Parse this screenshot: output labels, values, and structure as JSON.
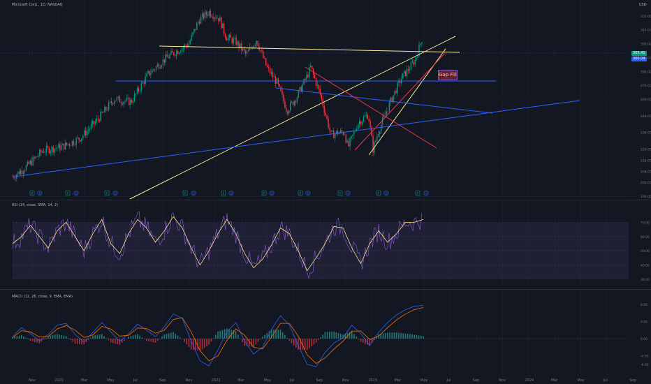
{
  "main_header": "Microsoft Corp., 1D, NASDAQ",
  "currency": "USD",
  "last_price_tag": "305.41",
  "secondary_tag": "300.04",
  "annotation_gap": "Gap Fill",
  "rsi_header": "RSI (14, close, SMA, 14, 2)",
  "macd_header": "MACD (12, 26, close, 9, EMA, EMA)",
  "event_markers": [
    "E",
    "D",
    "E",
    "D",
    "E",
    "D",
    "E",
    "D",
    "E",
    "D",
    "E",
    "D",
    "E",
    "D",
    "E",
    "D",
    "E",
    "D",
    "E",
    "D"
  ],
  "colors": {
    "bg": "#131722",
    "up": "#089981",
    "down": "#f23645",
    "blue": "#2962ff",
    "yellow": "#ffeb99",
    "red": "#f23645",
    "rsi": "#7e57c2",
    "rsi_ma": "#ffe38a",
    "macd": "#2962ff",
    "signal": "#ff6d00"
  },
  "chart_data": [
    {
      "type": "candlestick",
      "title": "Microsoft Corp., 1D, NASDAQ",
      "x_tick_labels": [
        "Nov",
        "2021",
        "Mar",
        "May",
        "Jul",
        "Sep",
        "Nov",
        "2022",
        "Mar",
        "May",
        "Jul",
        "Sep",
        "Nov",
        "2023",
        "Mar",
        "May",
        "Jul",
        "Sep",
        "Nov",
        "2024",
        "Mar",
        "May",
        "Jul",
        "Sep"
      ],
      "y_ticks": [
        190,
        200,
        208,
        216,
        224,
        236,
        248,
        260,
        270,
        280,
        290,
        300,
        310,
        320
      ],
      "y_tick_labels": [
        "190.00",
        "200.00",
        "208.00",
        "216.00",
        "224.00",
        "236.00",
        "248.00",
        "260.00",
        "270.00",
        "280.00",
        "290.00",
        "300.00",
        "310.00",
        "320.00"
      ],
      "ylim": [
        188,
        330
      ],
      "price_path": [
        [
          0,
          204
        ],
        [
          20,
          211
        ],
        [
          45,
          223
        ],
        [
          75,
          226
        ],
        [
          100,
          232
        ],
        [
          125,
          245
        ],
        [
          150,
          260
        ],
        [
          175,
          258
        ],
        [
          200,
          278
        ],
        [
          225,
          289
        ],
        [
          240,
          294
        ],
        [
          260,
          300
        ],
        [
          275,
          317
        ],
        [
          290,
          323
        ],
        [
          305,
          318
        ],
        [
          315,
          305
        ],
        [
          330,
          301
        ],
        [
          345,
          292
        ],
        [
          360,
          303
        ],
        [
          375,
          283
        ],
        [
          390,
          272
        ],
        [
          405,
          252
        ],
        [
          420,
          262
        ],
        [
          435,
          277
        ],
        [
          440,
          283
        ],
        [
          455,
          262
        ],
        [
          470,
          234
        ],
        [
          480,
          236
        ],
        [
          490,
          236
        ],
        [
          495,
          225
        ],
        [
          510,
          243
        ],
        [
          525,
          249
        ],
        [
          532,
          224
        ],
        [
          540,
          237
        ],
        [
          555,
          255
        ],
        [
          565,
          266
        ],
        [
          575,
          276
        ],
        [
          585,
          282
        ],
        [
          595,
          289
        ],
        [
          605,
          305
        ]
      ]
    },
    {
      "type": "line",
      "title": "RSI (14, close, SMA, 14, 2)",
      "y_ticks": [
        30,
        40,
        50,
        60,
        70
      ],
      "y_tick_labels": [
        "30.00",
        "40.00",
        "50.00",
        "60.00",
        "70.00"
      ],
      "ylim": [
        28,
        80
      ],
      "band": [
        30,
        70
      ],
      "series": [
        {
          "values": [
            55,
            60,
            68,
            60,
            52,
            64,
            70,
            60,
            50,
            62,
            72,
            55,
            48,
            62,
            72,
            66,
            56,
            64,
            74,
            66,
            52,
            40,
            50,
            62,
            72,
            62,
            48,
            38,
            44,
            54,
            66,
            62,
            50,
            36,
            45,
            55,
            67,
            66,
            52,
            41,
            55,
            64,
            56,
            62,
            70,
            70,
            72
          ]
        }
      ]
    },
    {
      "type": "line",
      "title": "MACD (12, 26, close, 9, EMA, EMA)",
      "y_ticks": [
        -6,
        -4,
        0,
        4,
        8
      ],
      "y_tick_labels": [
        "-6.00",
        "-4.00",
        "0.00",
        "4.00",
        "8.00"
      ],
      "ylim": [
        -8,
        10
      ],
      "series": [
        {
          "name": "",
          "values": [
            0.5,
            2.6,
            1.2,
            -0.5,
            1.0,
            3.2,
            3.6,
            1.0,
            -0.8,
            1.5,
            3.8,
            1.6,
            -0.6,
            1.2,
            3.4,
            2.0,
            0.5,
            2.8,
            5.8,
            4.8,
            -0.5,
            -5.2,
            -6.4,
            -2.6,
            1.6,
            3.8,
            -0.6,
            -3.6,
            -2.0,
            2.2,
            5.4,
            3.2,
            -1.6,
            -6.0,
            -6.6,
            -3.2,
            -1.0,
            0.2,
            3.2,
            1.2,
            -1.6,
            1.5,
            3.8,
            5.6,
            6.8,
            7.6,
            7.8
          ]
        },
        {
          "name": "",
          "values": [
            0.2,
            1.9,
            1.6,
            0.4,
            0.5,
            2.3,
            3.1,
            2.0,
            0.3,
            0.9,
            2.9,
            2.3,
            0.6,
            0.8,
            2.5,
            2.4,
            1.3,
            2.0,
            4.5,
            4.9,
            1.6,
            -2.8,
            -5.2,
            -4.0,
            -0.4,
            2.3,
            0.8,
            -2.0,
            -2.4,
            0.4,
            3.6,
            3.6,
            0.6,
            -3.8,
            -5.8,
            -4.5,
            -2.4,
            -0.6,
            1.8,
            1.8,
            -0.2,
            0.6,
            2.6,
            4.4,
            5.8,
            6.8,
            7.3
          ]
        }
      ]
    }
  ]
}
